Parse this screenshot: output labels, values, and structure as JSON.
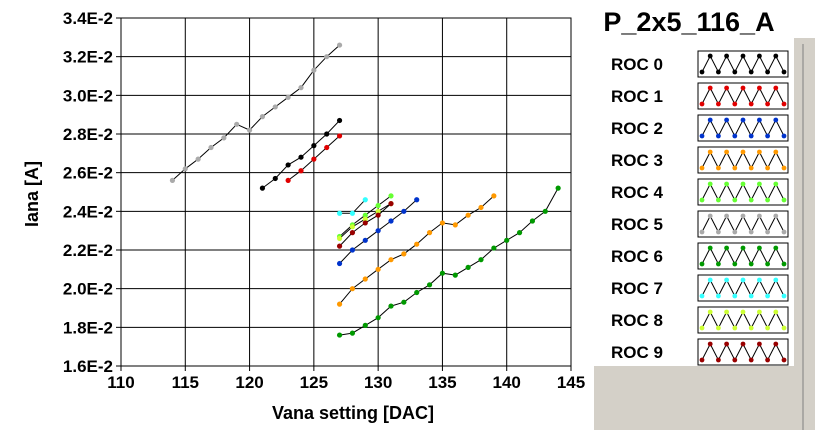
{
  "chart_data": {
    "type": "line",
    "title": "P_2x5_116_A",
    "xlabel": "Vana setting [DAC]",
    "ylabel": "Iana [A]",
    "xlim": [
      110,
      145
    ],
    "ylim": [
      0.016,
      0.034
    ],
    "x_ticks": [
      "110",
      "115",
      "120",
      "125",
      "130",
      "135",
      "140",
      "145"
    ],
    "y_ticks": [
      "1.6E-2",
      "1.8E-2",
      "2.0E-2",
      "2.2E-2",
      "2.4E-2",
      "2.6E-2",
      "2.8E-2",
      "3.0E-2",
      "3.2E-2",
      "3.4E-2"
    ],
    "grid": true,
    "series": [
      {
        "name": "ROC 0",
        "color": "#000000",
        "x": [
          121,
          122,
          123,
          124,
          125,
          126,
          127
        ],
        "y": [
          0.0252,
          0.0257,
          0.0264,
          0.0268,
          0.0274,
          0.028,
          0.0287
        ]
      },
      {
        "name": "ROC 1",
        "color": "#e00000",
        "x": [
          123,
          124,
          125,
          126,
          127
        ],
        "y": [
          0.0256,
          0.0261,
          0.0267,
          0.0273,
          0.0279
        ]
      },
      {
        "name": "ROC 2",
        "color": "#0033cc",
        "x": [
          127,
          128,
          129,
          130,
          131,
          132,
          133
        ],
        "y": [
          0.0213,
          0.022,
          0.0225,
          0.023,
          0.0235,
          0.024,
          0.0246
        ]
      },
      {
        "name": "ROC 3",
        "color": "#ff9900",
        "x": [
          127,
          128,
          129,
          130,
          131,
          132,
          133,
          134,
          135,
          136,
          137,
          138,
          139
        ],
        "y": [
          0.0192,
          0.02,
          0.0205,
          0.021,
          0.0215,
          0.0218,
          0.0223,
          0.0229,
          0.0234,
          0.0233,
          0.0238,
          0.0242,
          0.0248
        ]
      },
      {
        "name": "ROC 4",
        "color": "#66ff33",
        "x": [
          127,
          128,
          129,
          130,
          131
        ],
        "y": [
          0.0227,
          0.0233,
          0.0238,
          0.0243,
          0.0248
        ]
      },
      {
        "name": "ROC 5",
        "color": "#aaaaaa",
        "x": [
          114,
          115,
          116,
          117,
          118,
          119,
          120,
          121,
          122,
          123,
          124,
          125,
          126,
          127
        ],
        "y": [
          0.0256,
          0.0262,
          0.0267,
          0.0273,
          0.0278,
          0.0285,
          0.0282,
          0.0289,
          0.0294,
          0.0299,
          0.0304,
          0.0313,
          0.032,
          0.0326
        ]
      },
      {
        "name": "ROC 6",
        "color": "#009900",
        "x": [
          127,
          128,
          129,
          130,
          131,
          132,
          133,
          134,
          135,
          136,
          137,
          138,
          139,
          140,
          141,
          142,
          143,
          144
        ],
        "y": [
          0.0176,
          0.0177,
          0.0181,
          0.0185,
          0.0191,
          0.0193,
          0.0198,
          0.0202,
          0.0208,
          0.0207,
          0.0211,
          0.0215,
          0.0221,
          0.0225,
          0.0229,
          0.0235,
          0.024,
          0.0252
        ]
      },
      {
        "name": "ROC 7",
        "color": "#33ffff",
        "x": [
          127,
          128,
          129
        ],
        "y": [
          0.0239,
          0.0239,
          0.0246
        ]
      },
      {
        "name": "ROC 8",
        "color": "#ccff33",
        "x": [
          127,
          128,
          129,
          130,
          131
        ],
        "y": [
          0.0226,
          0.0232,
          0.0236,
          0.024,
          0.0244
        ]
      },
      {
        "name": "ROC 9",
        "color": "#990000",
        "x": [
          127,
          128,
          129,
          130,
          131
        ],
        "y": [
          0.0222,
          0.0229,
          0.0234,
          0.0238,
          0.0244
        ]
      }
    ]
  }
}
